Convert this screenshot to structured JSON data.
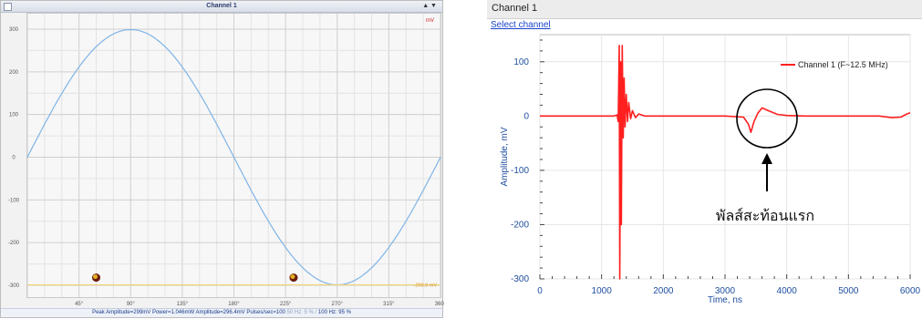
{
  "left_panel": {
    "title": "Channel 1",
    "window_controls": "▲ ▼",
    "unit": "mV",
    "cursor_value": "-298.9 mV",
    "x_ticks": [
      "45°",
      "90°",
      "135°",
      "180°",
      "225°",
      "270°",
      "315°",
      "360°"
    ],
    "y_ticks": [
      "300",
      "200",
      "100",
      "0",
      "-100",
      "-200",
      "-300"
    ],
    "status_main": "Peak Amplitude=299mV   Power=1.046mW   Amplitude=296.4mV   Pulses/sec=100",
    "status_dim": "  50 Hz: 5 % /",
    "status_end": " 100 Hz: 95 %",
    "colors": {
      "wave": "#7fb4e6",
      "marker": "#c0392b"
    }
  },
  "right_panel": {
    "header": "Channel 1",
    "select_link": "Select channel",
    "annotation": "พัลส์สะท้อนแรก",
    "chart_data": {
      "type": "line",
      "xlabel": "Time, ns",
      "ylabel": "Amplitude, mV",
      "xlim": [
        0,
        6000
      ],
      "ylim": [
        -300,
        150
      ],
      "x_ticks": [
        "0",
        "1000",
        "2000",
        "3000",
        "4000",
        "5000",
        "6000"
      ],
      "y_ticks": [
        "100",
        "0",
        "-100",
        "-200",
        "-300"
      ],
      "grid": true,
      "legend_position": "top-right",
      "series": [
        {
          "name": "Channel 1 (F~12.5 MHz)",
          "color": "#ff1f1f",
          "points": [
            [
              0,
              0
            ],
            [
              500,
              0
            ],
            [
              1000,
              0
            ],
            [
              1200,
              0
            ],
            [
              1250,
              2
            ],
            [
              1270,
              -10
            ],
            [
              1285,
              130
            ],
            [
              1295,
              -300
            ],
            [
              1310,
              100
            ],
            [
              1320,
              -200
            ],
            [
              1335,
              130
            ],
            [
              1350,
              -40
            ],
            [
              1365,
              70
            ],
            [
              1380,
              -20
            ],
            [
              1400,
              40
            ],
            [
              1420,
              -10
            ],
            [
              1440,
              25
            ],
            [
              1470,
              -5
            ],
            [
              1500,
              10
            ],
            [
              1550,
              -3
            ],
            [
              1600,
              4
            ],
            [
              1700,
              0
            ],
            [
              2000,
              0
            ],
            [
              2500,
              0
            ],
            [
              3000,
              0
            ],
            [
              3300,
              -2
            ],
            [
              3380,
              -15
            ],
            [
              3420,
              -30
            ],
            [
              3470,
              -10
            ],
            [
              3530,
              5
            ],
            [
              3600,
              15
            ],
            [
              3700,
              10
            ],
            [
              3850,
              3
            ],
            [
              4000,
              1
            ],
            [
              4300,
              0
            ],
            [
              4500,
              0
            ],
            [
              5000,
              0
            ],
            [
              5500,
              0
            ],
            [
              5700,
              -3
            ],
            [
              5850,
              -2
            ],
            [
              5950,
              4
            ],
            [
              6000,
              6
            ]
          ]
        }
      ]
    }
  }
}
